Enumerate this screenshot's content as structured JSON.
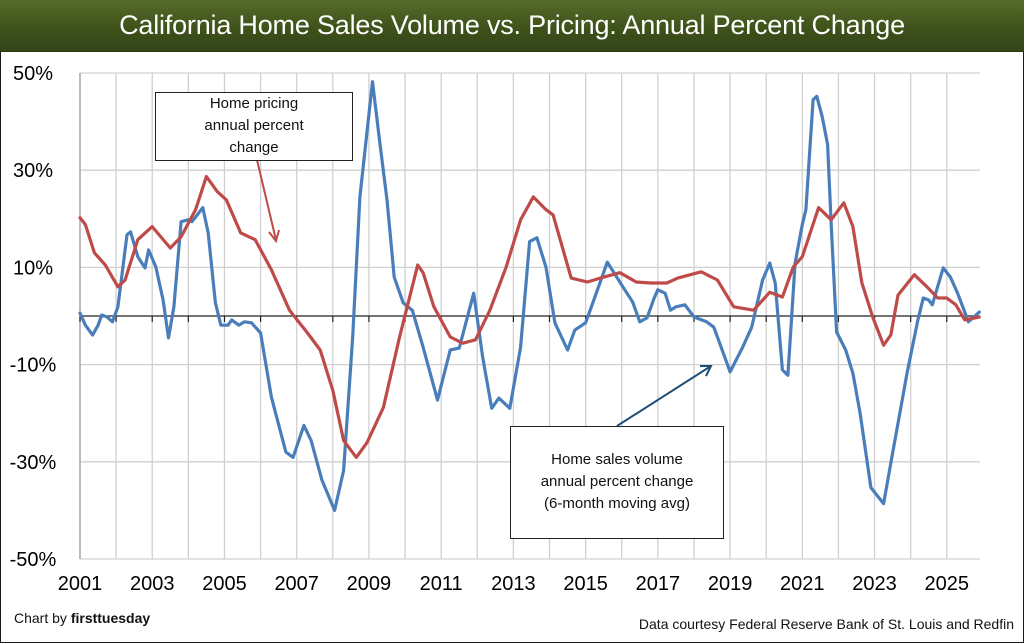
{
  "header": {
    "title": "California Home Sales Volume vs. Pricing: Annual Percent Change"
  },
  "footer": {
    "credit_prefix": "Chart by ",
    "credit_brand": "firsttuesday",
    "source": "Data courtesy Federal Reserve Bank of St. Louis and Redfin"
  },
  "annotations": {
    "pricing": [
      "Home pricing",
      "annual percent",
      "change"
    ],
    "volume": [
      "Home sales volume",
      "annual percent change",
      "(6-month moving avg)"
    ]
  },
  "colors": {
    "volume": "#4a7ebb",
    "pricing": "#be4b48",
    "title_bg": "#4a5e22",
    "grid": "#d0d0d0"
  },
  "chart_data": {
    "type": "line",
    "title": "California Home Sales Volume vs. Pricing: Annual Percent Change",
    "xlabel": "",
    "ylabel": "",
    "xlim": [
      2001,
      2025.92
    ],
    "ylim": [
      -50,
      50
    ],
    "grid": true,
    "yticks": [
      50,
      30,
      10,
      -10,
      -30,
      -50
    ],
    "ytick_labels": [
      "50%",
      "30%",
      "10%",
      "-10%",
      "-30%",
      "-50%"
    ],
    "xticks": [
      2001,
      2003,
      2005,
      2007,
      2009,
      2011,
      2013,
      2015,
      2017,
      2019,
      2021,
      2023,
      2025
    ],
    "xtick_labels": [
      "2001",
      "2003",
      "2005",
      "2007",
      "2009",
      "2011",
      "2013",
      "2015",
      "2017",
      "2019",
      "2021",
      "2023",
      "2025"
    ],
    "legend": "none (callout annotations)",
    "series": [
      {
        "name": "Home sales volume annual percent change (6-month moving avg)",
        "color": "#4a7ebb",
        "x": [
          2001.0,
          2001.15,
          2001.35,
          2001.5,
          2001.6,
          2001.75,
          2001.9,
          2002.05,
          2002.3,
          2002.4,
          2002.6,
          2002.8,
          2002.9,
          2003.1,
          2003.3,
          2003.45,
          2003.6,
          2003.8,
          2004.0,
          2004.1,
          2004.4,
          2004.55,
          2004.75,
          2004.9,
          2005.1,
          2005.2,
          2005.4,
          2005.55,
          2005.75,
          2006.0,
          2006.3,
          2006.7,
          2006.9,
          2007.2,
          2007.4,
          2007.7,
          2008.05,
          2008.3,
          2008.55,
          2008.75,
          2009.1,
          2009.3,
          2009.5,
          2009.7,
          2009.95,
          2010.2,
          2010.5,
          2010.9,
          2011.25,
          2011.5,
          2011.9,
          2012.15,
          2012.4,
          2012.6,
          2012.9,
          2013.2,
          2013.45,
          2013.65,
          2013.9,
          2014.15,
          2014.5,
          2014.7,
          2015.0,
          2015.2,
          2015.6,
          2016.05,
          2016.3,
          2016.5,
          2016.7,
          2016.9,
          2017.0,
          2017.2,
          2017.35,
          2017.5,
          2017.75,
          2018.0,
          2018.35,
          2018.55,
          2018.8,
          2019.0,
          2019.35,
          2019.6,
          2019.9,
          2020.1,
          2020.25,
          2020.45,
          2020.6,
          2020.8,
          2021.0,
          2021.1,
          2021.3,
          2021.4,
          2021.55,
          2021.7,
          2021.8,
          2021.95,
          2022.2,
          2022.4,
          2022.6,
          2022.9,
          2023.25,
          2023.5,
          2023.65,
          2023.9,
          2024.2,
          2024.35,
          2024.5,
          2024.6,
          2024.9,
          2025.1,
          2025.3,
          2025.6,
          2025.9
        ],
        "values": [
          0.6,
          -1.9,
          -3.9,
          -1.9,
          0.2,
          -0.2,
          -1.2,
          1.9,
          16.7,
          17.3,
          12.2,
          9.9,
          13.6,
          10.1,
          3.3,
          -4.5,
          1.9,
          19.4,
          19.8,
          19.4,
          22.3,
          17.1,
          2.7,
          -1.9,
          -1.9,
          -0.8,
          -1.9,
          -1.2,
          -1.4,
          -3.5,
          -16.7,
          -28.0,
          -29.1,
          -22.5,
          -25.6,
          -33.8,
          -40.0,
          -31.8,
          -4.3,
          24.5,
          48.2,
          35.7,
          23.9,
          8.0,
          2.7,
          1.2,
          -6.4,
          -17.3,
          -7.0,
          -6.6,
          4.7,
          -8.5,
          -19.0,
          -16.9,
          -19.0,
          -6.4,
          15.3,
          16.1,
          10.1,
          -1.4,
          -7.0,
          -2.9,
          -1.4,
          2.7,
          11.1,
          5.8,
          2.9,
          -1.2,
          -0.4,
          3.7,
          5.4,
          4.7,
          1.2,
          1.9,
          2.3,
          -0.2,
          -1.2,
          -2.3,
          -7.4,
          -11.5,
          -6.4,
          -2.3,
          7.4,
          10.9,
          6.8,
          -11.1,
          -12.2,
          10.9,
          18.8,
          21.9,
          44.5,
          45.2,
          41.0,
          35.3,
          18.8,
          -3.3,
          -7.0,
          -11.8,
          -20.0,
          -35.3,
          -38.6,
          -28.2,
          -22.1,
          -11.8,
          -0.8,
          3.7,
          3.3,
          2.3,
          9.9,
          8.0,
          4.7,
          -1.2,
          0.8
        ]
      },
      {
        "name": "Home pricing annual percent change",
        "color": "#be4b48",
        "x": [
          2001.0,
          2001.15,
          2001.4,
          2001.7,
          2002.05,
          2002.25,
          2002.6,
          2003.0,
          2003.5,
          2003.8,
          2004.2,
          2004.5,
          2004.8,
          2005.05,
          2005.45,
          2005.85,
          2006.3,
          2006.8,
          2007.3,
          2007.65,
          2008.0,
          2008.3,
          2008.65,
          2008.95,
          2009.4,
          2009.85,
          2010.35,
          2010.5,
          2010.8,
          2011.25,
          2011.6,
          2011.95,
          2012.35,
          2012.8,
          2013.2,
          2013.55,
          2013.9,
          2014.1,
          2014.6,
          2015.05,
          2015.4,
          2015.95,
          2016.4,
          2016.8,
          2017.25,
          2017.55,
          2018.2,
          2018.65,
          2019.1,
          2019.65,
          2020.1,
          2020.45,
          2020.75,
          2021.0,
          2021.45,
          2021.8,
          2022.15,
          2022.4,
          2022.65,
          2022.95,
          2023.25,
          2023.45,
          2023.65,
          2024.1,
          2024.45,
          2024.75,
          2025.0,
          2025.25,
          2025.5,
          2025.9
        ],
        "values": [
          20.2,
          18.8,
          13.0,
          10.5,
          6.0,
          7.4,
          15.7,
          18.4,
          14.0,
          16.3,
          21.9,
          28.7,
          25.6,
          23.9,
          17.1,
          15.7,
          9.5,
          1.2,
          -3.5,
          -7.0,
          -15.3,
          -25.6,
          -29.1,
          -26.0,
          -18.8,
          -4.3,
          10.5,
          8.9,
          1.9,
          -4.3,
          -5.6,
          -4.9,
          1.2,
          10.1,
          19.8,
          24.5,
          21.9,
          20.8,
          7.8,
          7.0,
          7.8,
          8.9,
          7.0,
          6.8,
          6.8,
          7.8,
          9.1,
          7.4,
          1.9,
          1.2,
          4.9,
          3.9,
          10.1,
          12.2,
          22.3,
          19.8,
          23.3,
          18.4,
          6.8,
          -0.2,
          -6.0,
          -3.9,
          4.3,
          8.5,
          6.0,
          3.7,
          3.7,
          2.3,
          -0.8,
          -0.2
        ]
      }
    ]
  }
}
